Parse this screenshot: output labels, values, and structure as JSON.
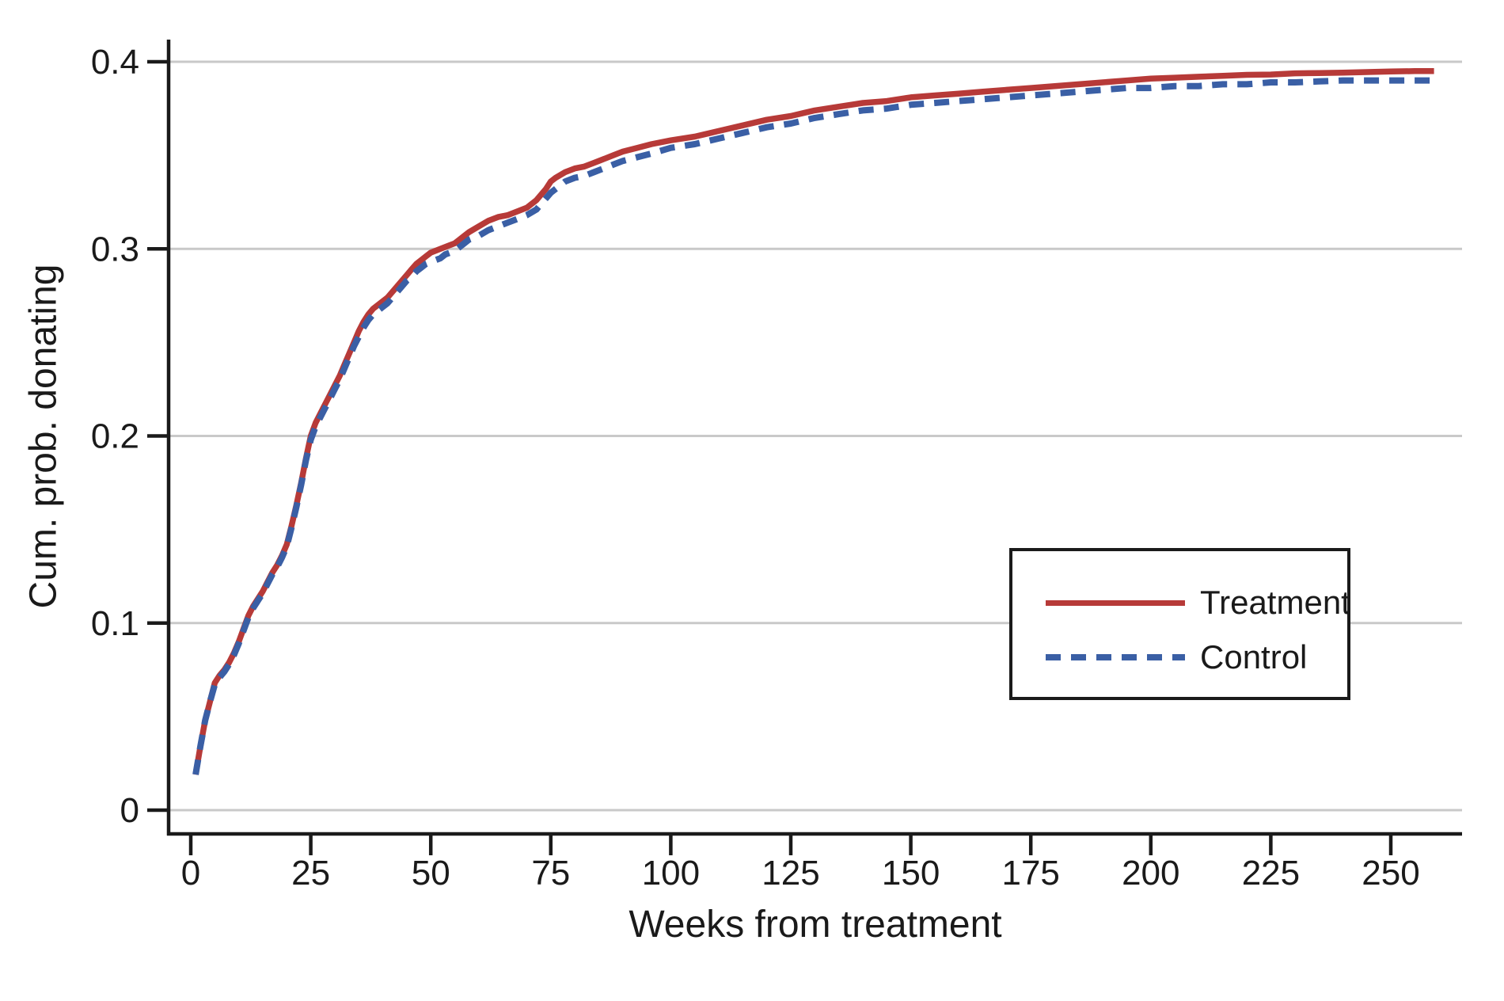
{
  "figure": {
    "background": "#ffffff",
    "axis_color": "#1a1a1a",
    "grid_color": "#c9c9c9"
  },
  "chart_data": {
    "type": "line",
    "title": "",
    "xlabel": "Weeks from treatment",
    "ylabel": "Cum. prob. donating",
    "xlim": [
      -4.6,
      264.9
    ],
    "ylim": [
      0,
      0.412
    ],
    "x_ticks": [
      0,
      25,
      50,
      75,
      100,
      125,
      150,
      175,
      200,
      225,
      250
    ],
    "y_ticks": [
      0,
      0.1,
      0.2,
      0.3,
      0.4
    ],
    "y_tick_labels": [
      "0",
      "0.1",
      "0.2",
      "0.3",
      "0.4"
    ],
    "grid": "horizontal-only",
    "legend_position": "lower-right",
    "series": [
      {
        "name": "Treatment",
        "color": "#b73a38",
        "style": "solid",
        "x": [
          1,
          2,
          3,
          4,
          5,
          6,
          7,
          8,
          9,
          10,
          11,
          12,
          13,
          14,
          15,
          16,
          17,
          18,
          19,
          20,
          21,
          22,
          23,
          24,
          25,
          26,
          27,
          28,
          29,
          30,
          31,
          32,
          33,
          34,
          35,
          36,
          37,
          38,
          39,
          40,
          41,
          42,
          43,
          44,
          45,
          46,
          47,
          48,
          49,
          50,
          51,
          52,
          53,
          54,
          55,
          56,
          57,
          58,
          60,
          62,
          64,
          66,
          68,
          70,
          72,
          74,
          75,
          76,
          78,
          80,
          82,
          84,
          86,
          88,
          90,
          93,
          96,
          100,
          105,
          110,
          115,
          120,
          125,
          130,
          135,
          140,
          145,
          150,
          155,
          160,
          165,
          170,
          175,
          180,
          185,
          190,
          195,
          200,
          205,
          210,
          215,
          220,
          225,
          230,
          235,
          240,
          245,
          250,
          255,
          259
        ],
        "y": [
          0.019,
          0.034,
          0.048,
          0.058,
          0.068,
          0.072,
          0.075,
          0.079,
          0.084,
          0.09,
          0.097,
          0.104,
          0.109,
          0.113,
          0.117,
          0.122,
          0.127,
          0.131,
          0.136,
          0.142,
          0.152,
          0.163,
          0.175,
          0.188,
          0.2,
          0.207,
          0.212,
          0.217,
          0.222,
          0.227,
          0.232,
          0.238,
          0.244,
          0.25,
          0.256,
          0.261,
          0.265,
          0.268,
          0.27,
          0.272,
          0.274,
          0.277,
          0.28,
          0.283,
          0.286,
          0.289,
          0.292,
          0.294,
          0.296,
          0.298,
          0.299,
          0.3,
          0.301,
          0.302,
          0.303,
          0.305,
          0.307,
          0.309,
          0.312,
          0.315,
          0.317,
          0.318,
          0.32,
          0.322,
          0.326,
          0.332,
          0.336,
          0.338,
          0.341,
          0.343,
          0.344,
          0.346,
          0.348,
          0.35,
          0.352,
          0.354,
          0.356,
          0.358,
          0.36,
          0.363,
          0.366,
          0.369,
          0.371,
          0.374,
          0.376,
          0.378,
          0.379,
          0.381,
          0.382,
          0.383,
          0.384,
          0.385,
          0.386,
          0.387,
          0.388,
          0.389,
          0.39,
          0.391,
          0.3915,
          0.392,
          0.3925,
          0.393,
          0.3932,
          0.3938,
          0.394,
          0.3942,
          0.3945,
          0.3948,
          0.395,
          0.395
        ]
      },
      {
        "name": "Control",
        "color": "#3a5fa5",
        "style": "dashed",
        "x": [
          1,
          2,
          3,
          4,
          5,
          6,
          7,
          8,
          9,
          10,
          11,
          12,
          13,
          14,
          15,
          16,
          17,
          18,
          19,
          20,
          21,
          22,
          23,
          24,
          25,
          26,
          27,
          28,
          29,
          30,
          31,
          32,
          33,
          34,
          35,
          36,
          37,
          38,
          39,
          40,
          41,
          42,
          43,
          44,
          45,
          46,
          47,
          48,
          49,
          50,
          51,
          52,
          53,
          54,
          55,
          56,
          57,
          58,
          60,
          62,
          64,
          66,
          68,
          70,
          72,
          74,
          75,
          76,
          78,
          80,
          82,
          84,
          86,
          88,
          90,
          93,
          96,
          100,
          105,
          110,
          115,
          120,
          125,
          130,
          135,
          140,
          145,
          150,
          155,
          160,
          165,
          170,
          175,
          180,
          185,
          190,
          195,
          200,
          205,
          210,
          215,
          220,
          225,
          230,
          235,
          240,
          245,
          250,
          255,
          259
        ],
        "y": [
          0.019,
          0.034,
          0.048,
          0.058,
          0.067,
          0.071,
          0.074,
          0.078,
          0.083,
          0.089,
          0.096,
          0.103,
          0.108,
          0.112,
          0.116,
          0.121,
          0.126,
          0.13,
          0.135,
          0.141,
          0.151,
          0.162,
          0.174,
          0.187,
          0.198,
          0.205,
          0.21,
          0.215,
          0.22,
          0.225,
          0.23,
          0.236,
          0.242,
          0.248,
          0.253,
          0.258,
          0.262,
          0.265,
          0.267,
          0.269,
          0.271,
          0.274,
          0.277,
          0.28,
          0.283,
          0.285,
          0.288,
          0.29,
          0.292,
          0.293,
          0.294,
          0.295,
          0.297,
          0.298,
          0.299,
          0.301,
          0.303,
          0.305,
          0.307,
          0.31,
          0.312,
          0.314,
          0.316,
          0.318,
          0.321,
          0.327,
          0.33,
          0.332,
          0.336,
          0.338,
          0.339,
          0.341,
          0.343,
          0.345,
          0.347,
          0.349,
          0.351,
          0.354,
          0.356,
          0.359,
          0.362,
          0.365,
          0.367,
          0.37,
          0.372,
          0.374,
          0.375,
          0.377,
          0.378,
          0.379,
          0.38,
          0.381,
          0.382,
          0.383,
          0.384,
          0.385,
          0.386,
          0.386,
          0.387,
          0.387,
          0.388,
          0.388,
          0.389,
          0.389,
          0.3895,
          0.39,
          0.39,
          0.39,
          0.39,
          0.39
        ]
      }
    ]
  },
  "legend": {
    "treatment_label": "Treatment",
    "control_label": "Control"
  }
}
